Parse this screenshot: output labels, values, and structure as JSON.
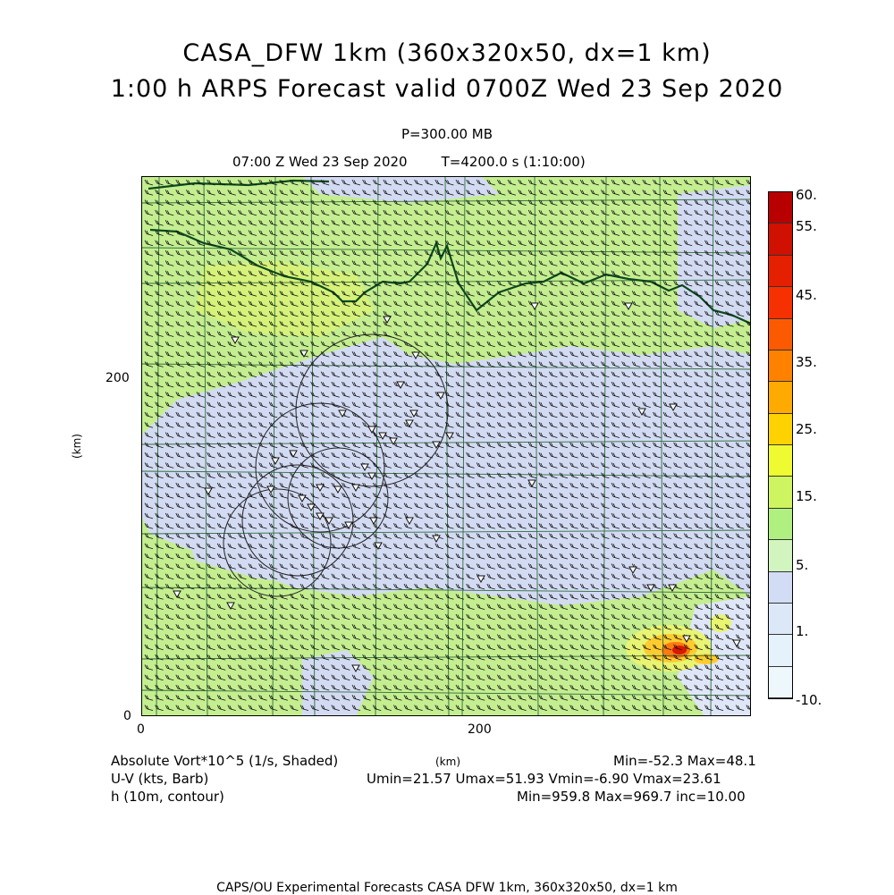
{
  "title": {
    "line1": "CASA_DFW 1km (360x320x50, dx=1 km)",
    "line2": "1:00 h ARPS Forecast valid 0700Z Wed 23 Sep 2020"
  },
  "subtitle": {
    "pressure": "P=300.00 MB",
    "valid_time": "07:00 Z Wed 23 Sep 2020",
    "model_time": "T=4200.0 s (1:10:00)"
  },
  "axes": {
    "x_label": "(km)",
    "y_label": "(km)",
    "x_ticks": [
      "0",
      "200"
    ],
    "y_ticks": [
      "0",
      "200"
    ]
  },
  "colorbar": {
    "labels": [
      "60.",
      "55.",
      "45.",
      "35.",
      "25.",
      "15.",
      "5.",
      "1.",
      "-10."
    ],
    "colors": [
      "#b80000",
      "#d01000",
      "#e42000",
      "#f63000",
      "#fc5a00",
      "#fe8200",
      "#feaa00",
      "#fed200",
      "#f0fa30",
      "#cef560",
      "#b0f080",
      "#d2f5c0",
      "#d3dcf5",
      "#dce8f8",
      "#e6f2fb",
      "#eef8fc"
    ]
  },
  "legend": {
    "field1": "Absolute Vort*10^5 (1/s, Shaded)",
    "field1_stats": "Min=-52.3 Max=48.1",
    "field2": "U-V (kts, Barb)",
    "field2_stats": "Umin=21.57 Umax=51.93 Vmin=-6.90 Vmax=23.61",
    "field3": "h (10m, contour)",
    "field3_stats": "Min=959.8 Max=969.7 inc=10.00"
  },
  "credit": "CAPS/OU Experimental Forecasts  CASA DFW 1km, 360x320x50, dx=1 km",
  "palette": {
    "green_light": "#c4ee90",
    "green_mid": "#b4e87a",
    "lavender": "#d3dbf3",
    "yellow": "#e8f472",
    "orange": "#ffb030",
    "red": "#e82000",
    "county_line": "#2e6a3a",
    "state_line": "#0c4a1c"
  }
}
